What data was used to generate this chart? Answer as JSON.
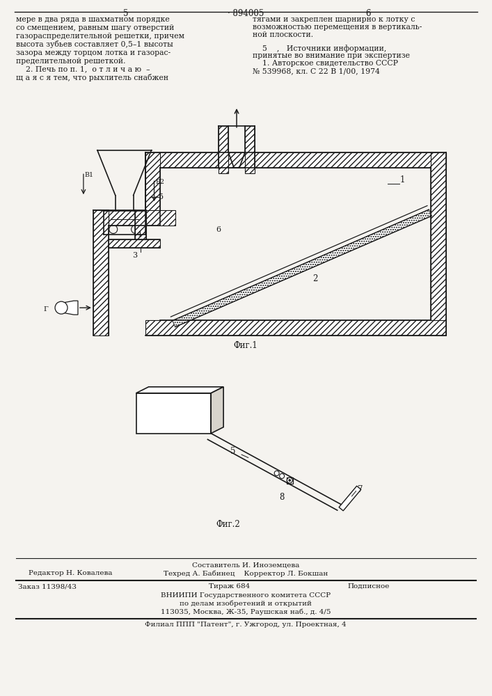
{
  "bg_color": "#f5f3ef",
  "page_width": 7.07,
  "page_height": 10.0,
  "top_text_left": "мере в два ряда в шахматном порядке\nсо смещением, равным шагу отверстий\nгазораспределительной решетки, причем\nвысота зубьев составляет 0,5–1 высоты\nзазора между торцом лотка и газорас-\nпределительной решеткой.\n    2. Печь по п. 1,  о т л и ч а ю  –\nщ а я с я тем, что рыхлитель снабжен",
  "top_text_right": "тягами и закреплен шарнирно к лотку с\nвозможностью перемещения в вертикаль-\nной плоскости.\n\n    5    ,   Источники информации,\nпринятые во внимание при экспертизе\n    1. Авторское свидетельство СССР\n№ 539968, кл. С 22 В 1/00, 1974",
  "header_left_num": "5",
  "header_center": "· 894005",
  "header_right_num": "6",
  "fig1_caption": "Фиг.1",
  "fig2_caption": "Фиг.2"
}
